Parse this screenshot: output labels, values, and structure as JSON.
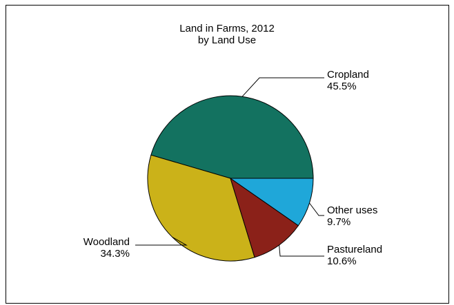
{
  "chart_data": {
    "type": "pie",
    "title": "Land in Farms, 2012",
    "subtitle": "by Land Use",
    "start_angle_deg": 0,
    "direction": "counterclockwise",
    "slices": [
      {
        "label": "Cropland",
        "value": 45.5,
        "value_text": "45.5%",
        "color": "#137260"
      },
      {
        "label": "Woodland",
        "value": 34.3,
        "value_text": "34.3%",
        "color": "#cbb219"
      },
      {
        "label": "Pastureland",
        "value": 10.6,
        "value_text": "10.6%",
        "color": "#8b2119"
      },
      {
        "label": "Other uses",
        "value": 9.7,
        "value_text": "9.7%",
        "color": "#1fa7d9"
      }
    ],
    "legend": "none",
    "grid": false
  }
}
